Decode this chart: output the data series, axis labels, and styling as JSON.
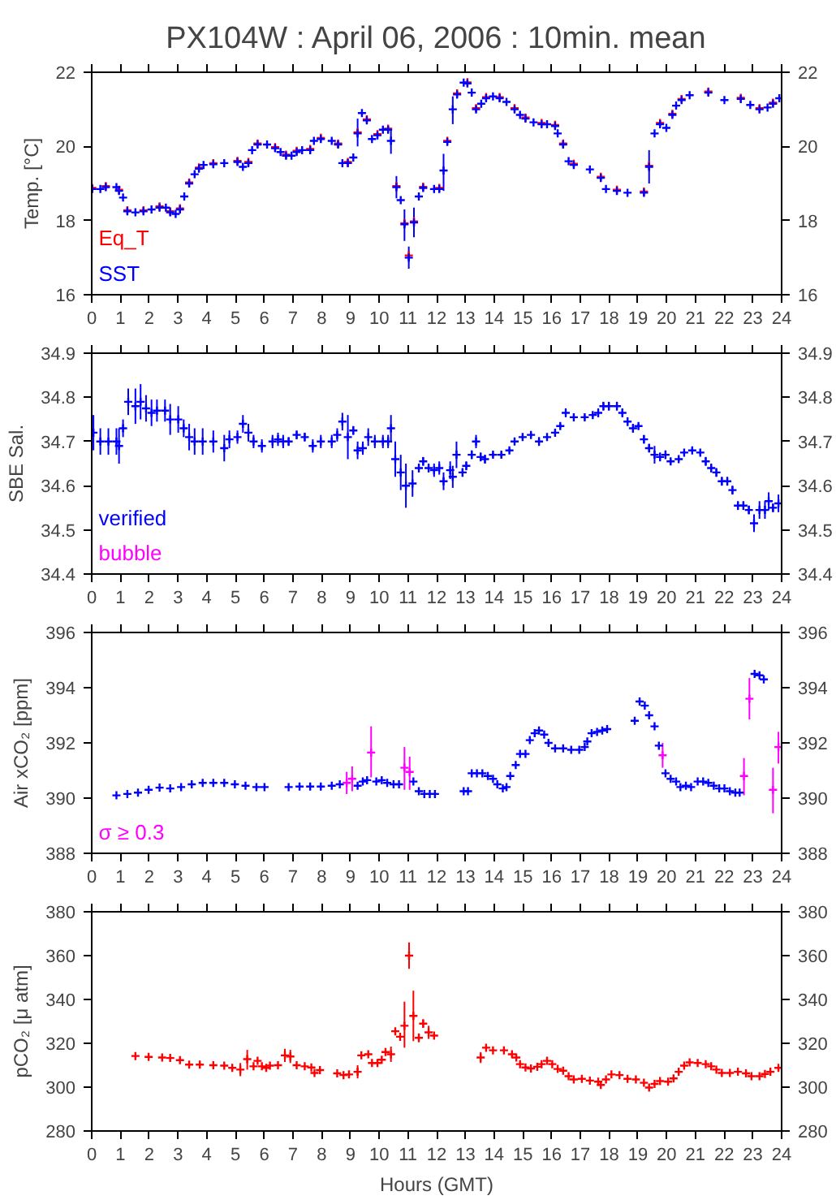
{
  "chart_data": [
    {
      "type": "scatter",
      "title": "PX104W : April 06, 2006 : 10min. mean",
      "ylabel": "Temp. [°C]",
      "xlim": [
        0,
        24
      ],
      "xticks": [
        0,
        1,
        2,
        3,
        4,
        5,
        6,
        7,
        8,
        9,
        10,
        11,
        12,
        13,
        14,
        15,
        16,
        17,
        18,
        19,
        20,
        21,
        22,
        23,
        24
      ],
      "ylim": [
        16,
        22
      ],
      "yticks": [
        16,
        18,
        20,
        22
      ],
      "y2lim": [
        16,
        22
      ],
      "y2ticks": [
        16,
        18,
        20,
        22
      ],
      "grid": false,
      "legend": "bottom left",
      "marker": "cross",
      "series": [
        {
          "name": "Eq_T",
          "color": "#ff0000",
          "x": [
            0.02,
            0.49,
            0.95,
            1.24,
            1.8,
            2.36,
            2.73,
            3.07,
            3.39,
            3.73,
            4.23,
            5.07,
            5.45,
            5.77,
            6.38,
            6.76,
            7.13,
            7.6,
            7.97,
            8.57,
            8.91,
            9.25,
            9.57,
            9.94,
            10.31,
            10.6,
            10.88,
            11.03,
            11.21,
            11.53,
            12.09,
            12.37,
            12.71,
            13.07,
            13.37,
            13.72,
            14.19,
            14.71,
            15.09,
            15.65,
            16.12,
            16.4,
            16.77,
            17.71,
            18.27,
            19.21,
            19.39,
            19.77,
            20.2,
            20.52,
            21.45,
            22.58,
            23.23,
            23.7
          ],
          "values": [
            18.88,
            18.93,
            18.83,
            18.28,
            18.28,
            18.38,
            18.25,
            18.33,
            19.03,
            19.43,
            19.55,
            19.61,
            19.58,
            20.08,
            19.98,
            19.78,
            19.88,
            19.93,
            20.23,
            20.08,
            19.58,
            20.38,
            20.73,
            20.33,
            20.48,
            18.93,
            17.93,
            17.06,
            17.98,
            18.91,
            18.88,
            20.15,
            21.43,
            21.73,
            21.03,
            21.33,
            21.33,
            21.03,
            20.78,
            20.63,
            20.58,
            20.08,
            19.53,
            19.18,
            18.83,
            18.78,
            19.48,
            20.63,
            20.88,
            21.28,
            21.48,
            21.31,
            21.03,
            21.18
          ]
        },
        {
          "name": "SST",
          "color": "#0000ff",
          "x": [
            0.02,
            0.3,
            0.49,
            0.86,
            0.95,
            1.09,
            1.24,
            1.52,
            1.8,
            2.08,
            2.36,
            2.58,
            2.73,
            2.92,
            3.07,
            3.22,
            3.39,
            3.58,
            3.73,
            3.89,
            4.23,
            4.61,
            5.07,
            5.26,
            5.45,
            5.58,
            5.77,
            6.1,
            6.38,
            6.57,
            6.76,
            6.95,
            7.13,
            7.32,
            7.6,
            7.73,
            7.97,
            8.35,
            8.57,
            8.72,
            8.91,
            9.1,
            9.25,
            9.4,
            9.57,
            9.75,
            9.94,
            10.13,
            10.31,
            10.41,
            10.6,
            10.75,
            10.88,
            11.03,
            11.21,
            11.38,
            11.53,
            11.91,
            12.09,
            12.24,
            12.37,
            12.56,
            12.71,
            12.94,
            13.07,
            13.22,
            13.37,
            13.55,
            13.72,
            13.96,
            14.19,
            14.43,
            14.71,
            14.9,
            15.09,
            15.37,
            15.65,
            15.84,
            16.12,
            16.21,
            16.4,
            16.59,
            16.77,
            17.33,
            17.71,
            17.89,
            18.27,
            18.64,
            19.21,
            19.39,
            19.58,
            19.77,
            19.99,
            20.2,
            20.33,
            20.52,
            20.8,
            21.45,
            22.01,
            22.58,
            22.91,
            23.23,
            23.51,
            23.7,
            23.92
          ],
          "values": [
            18.85,
            18.85,
            18.9,
            18.9,
            18.8,
            18.62,
            18.25,
            18.22,
            18.25,
            18.3,
            18.35,
            18.35,
            18.22,
            18.18,
            18.3,
            18.65,
            19.0,
            19.25,
            19.4,
            19.5,
            19.52,
            19.55,
            19.58,
            19.45,
            19.55,
            19.9,
            20.05,
            20.05,
            19.95,
            19.85,
            19.75,
            19.75,
            19.85,
            19.9,
            19.9,
            20.15,
            20.2,
            20.15,
            20.05,
            19.55,
            19.55,
            19.7,
            20.35,
            20.9,
            20.7,
            20.2,
            20.3,
            20.45,
            20.45,
            20.15,
            18.9,
            18.55,
            17.9,
            17.0,
            17.95,
            18.65,
            18.88,
            18.85,
            18.85,
            19.35,
            20.12,
            21.0,
            21.4,
            21.72,
            21.7,
            21.45,
            21.0,
            21.15,
            21.3,
            21.35,
            21.3,
            21.2,
            21.0,
            20.85,
            20.75,
            20.65,
            20.6,
            20.6,
            20.55,
            20.35,
            20.05,
            19.6,
            19.5,
            19.38,
            19.15,
            18.85,
            18.8,
            18.75,
            18.75,
            19.45,
            20.35,
            20.6,
            20.5,
            20.85,
            21.1,
            21.25,
            21.38,
            21.45,
            21.25,
            21.28,
            21.12,
            21.0,
            21.05,
            21.15,
            21.3
          ],
          "errors": [
            null,
            null,
            null,
            null,
            null,
            null,
            null,
            null,
            null,
            null,
            null,
            null,
            null,
            null,
            null,
            null,
            null,
            null,
            null,
            null,
            null,
            null,
            null,
            null,
            null,
            null,
            null,
            null,
            null,
            null,
            null,
            null,
            null,
            null,
            null,
            null,
            null,
            null,
            null,
            null,
            null,
            null,
            [
              20.0,
              20.75
            ],
            null,
            null,
            null,
            null,
            null,
            null,
            [
              19.8,
              20.45
            ],
            0.3,
            null,
            [
              17.45,
              18.3
            ],
            0.3,
            [
              17.55,
              18.35
            ],
            null,
            null,
            null,
            null,
            [
              18.8,
              19.8
            ],
            null,
            [
              20.6,
              21.35
            ],
            null,
            null,
            null,
            null,
            null,
            null,
            null,
            null,
            null,
            null,
            null,
            null,
            null,
            null,
            null,
            null,
            null,
            null,
            null,
            null,
            null,
            null,
            null,
            null,
            null,
            null,
            null,
            [
              19.0,
              19.9
            ],
            null,
            null,
            null,
            null,
            null,
            null,
            null,
            null,
            null,
            null,
            null,
            null,
            null,
            null,
            null
          ]
        }
      ]
    },
    {
      "type": "scatter",
      "ylabel": "SBE Sal.",
      "xlim": [
        0,
        24
      ],
      "xticks": [
        0,
        1,
        2,
        3,
        4,
        5,
        6,
        7,
        8,
        9,
        10,
        11,
        12,
        13,
        14,
        15,
        16,
        17,
        18,
        19,
        20,
        21,
        22,
        23,
        24
      ],
      "ylim": [
        34.4,
        34.9
      ],
      "yticks": [
        34.4,
        34.5,
        34.6,
        34.7,
        34.8,
        34.9
      ],
      "y2lim": [
        34.4,
        34.9
      ],
      "y2ticks": [
        34.4,
        34.5,
        34.6,
        34.7,
        34.8,
        34.9
      ],
      "grid": false,
      "legend": "bottom left",
      "marker": "cross",
      "series": [
        {
          "name": "verified",
          "color": "#0000ff",
          "x": [
            0.06,
            0.3,
            0.58,
            0.86,
            0.95,
            1.09,
            1.27,
            1.52,
            1.7,
            1.89,
            2.08,
            2.27,
            2.55,
            2.73,
            3.01,
            3.2,
            3.39,
            3.58,
            3.86,
            4.23,
            4.61,
            4.79,
            5.07,
            5.26,
            5.45,
            5.63,
            5.92,
            6.29,
            6.48,
            6.66,
            6.85,
            7.13,
            7.41,
            7.69,
            7.97,
            8.35,
            8.54,
            8.72,
            8.91,
            9.1,
            9.25,
            9.43,
            9.62,
            9.85,
            10.13,
            10.31,
            10.41,
            10.56,
            10.75,
            10.93,
            11.16,
            11.38,
            11.53,
            11.72,
            11.91,
            12.09,
            12.24,
            12.47,
            12.56,
            12.69,
            12.9,
            13.03,
            13.22,
            13.37,
            13.53,
            13.68,
            13.96,
            14.25,
            14.53,
            14.71,
            14.99,
            15.28,
            15.56,
            15.84,
            16.12,
            16.3,
            16.49,
            16.77,
            17.15,
            17.43,
            17.62,
            17.8,
            17.99,
            18.27,
            18.46,
            18.64,
            18.83,
            19.02,
            19.21,
            19.39,
            19.58,
            19.77,
            19.96,
            20.14,
            20.42,
            20.61,
            20.89,
            21.17,
            21.36,
            21.55,
            21.73,
            21.92,
            22.11,
            22.29,
            22.48,
            22.67,
            22.86,
            23.04,
            23.23,
            23.42,
            23.55,
            23.7,
            23.89
          ],
          "values": [
            34.72,
            34.7,
            34.7,
            34.7,
            34.69,
            34.73,
            34.79,
            34.78,
            34.79,
            34.775,
            34.765,
            34.77,
            34.77,
            34.75,
            34.75,
            34.73,
            34.71,
            34.7,
            34.7,
            34.7,
            34.685,
            34.705,
            34.71,
            34.74,
            34.72,
            34.7,
            34.69,
            34.7,
            34.705,
            34.7,
            34.7,
            34.715,
            34.71,
            34.69,
            34.7,
            34.7,
            34.715,
            34.745,
            34.71,
            34.725,
            34.68,
            34.685,
            34.71,
            34.7,
            34.7,
            34.7,
            34.73,
            34.66,
            34.63,
            34.6,
            34.605,
            34.64,
            34.655,
            34.64,
            34.635,
            34.64,
            34.61,
            34.635,
            34.62,
            34.67,
            34.63,
            34.645,
            34.67,
            34.7,
            34.665,
            34.66,
            34.67,
            34.67,
            34.68,
            34.7,
            34.71,
            34.715,
            34.7,
            34.71,
            34.72,
            34.735,
            34.765,
            34.755,
            34.755,
            34.76,
            34.765,
            34.78,
            34.78,
            34.78,
            34.765,
            34.745,
            34.73,
            34.735,
            34.705,
            34.685,
            34.67,
            34.665,
            34.67,
            34.655,
            34.66,
            34.675,
            34.68,
            34.675,
            34.655,
            34.64,
            34.63,
            34.61,
            34.61,
            34.59,
            34.555,
            34.555,
            34.545,
            34.515,
            34.545,
            34.545,
            34.565,
            34.55,
            34.56
          ],
          "errors": [
            0.04,
            0.03,
            0.03,
            0.03,
            0.04,
            0.02,
            0.03,
            0.04,
            0.04,
            0.03,
            0.03,
            0.025,
            0.025,
            0.035,
            0.03,
            0.02,
            0.03,
            0.03,
            0.03,
            0.025,
            0.03,
            0.02,
            0.015,
            0.02,
            0.02,
            0.015,
            0.015,
            0.015,
            0.015,
            0.015,
            0.01,
            0.01,
            0.01,
            0.015,
            0.015,
            0.015,
            0.015,
            0.02,
            0.05,
            0.01,
            0.02,
            0.015,
            0.02,
            0.015,
            0.015,
            0.015,
            0.03,
            0.04,
            0.04,
            0.05,
            0.03,
            0.01,
            0.01,
            0.01,
            0.015,
            0.015,
            0.02,
            0.02,
            0.025,
            0.03,
            0.01,
            0.01,
            0.01,
            0.015,
            0.01,
            0.01,
            0.005,
            0.005,
            0.005,
            0.005,
            0.005,
            0.005,
            0.01,
            0.005,
            0.005,
            0.005,
            0.01,
            0.005,
            0.005,
            0.005,
            0.01,
            0.01,
            0.01,
            0.01,
            0.01,
            0.01,
            0.01,
            0.005,
            0.01,
            0.01,
            0.02,
            0.01,
            0.01,
            0.005,
            0.005,
            0.005,
            0.005,
            0.005,
            0.01,
            0.01,
            0.01,
            0.01,
            0.01,
            0.01,
            0.01,
            0.01,
            0.01,
            0.02,
            0.02,
            0.02,
            0.02,
            0.01,
            0.02
          ]
        },
        {
          "name": "bubble",
          "color": "#ff00ff"
        }
      ]
    },
    {
      "type": "scatter",
      "ylabel": "Air xCO₂ [ppm]",
      "xlim": [
        0,
        24
      ],
      "xticks": [
        0,
        1,
        2,
        3,
        4,
        5,
        6,
        7,
        8,
        9,
        10,
        11,
        12,
        13,
        14,
        15,
        16,
        17,
        18,
        19,
        20,
        21,
        22,
        23,
        24
      ],
      "ylim": [
        388,
        396
      ],
      "yticks": [
        388,
        390,
        392,
        394,
        396
      ],
      "y2lim": [
        388,
        396
      ],
      "y2ticks": [
        388,
        390,
        392,
        394,
        396
      ],
      "grid": false,
      "legend": "bottom left",
      "marker": "cross",
      "series": [
        {
          "color": "#0000ff",
          "x": [
            0.86,
            1.24,
            1.61,
            1.98,
            2.36,
            2.73,
            3.11,
            3.48,
            3.86,
            4.23,
            4.61,
            4.98,
            5.35,
            5.73,
            6.01,
            6.85,
            7.23,
            7.6,
            7.97,
            8.35,
            8.63,
            9.25,
            9.43,
            9.58,
            9.9,
            10.09,
            10.28,
            10.5,
            10.69,
            11.19,
            11.38,
            11.57,
            11.76,
            11.94,
            12.94,
            13.09,
            13.22,
            13.4,
            13.59,
            13.78,
            13.96,
            14.11,
            14.3,
            14.43,
            14.56,
            14.75,
            14.9,
            15.09,
            15.24,
            15.41,
            15.56,
            15.74,
            15.89,
            16.12,
            16.4,
            16.68,
            16.96,
            17.15,
            17.24,
            17.39,
            17.58,
            17.76,
            17.93,
            18.89,
            19.06,
            19.24,
            19.39,
            19.58,
            19.73,
            19.96,
            20.14,
            20.33,
            20.48,
            20.67,
            20.85,
            21.08,
            21.27,
            21.45,
            21.64,
            21.83,
            22.01,
            22.2,
            22.39,
            22.54,
            23.06,
            23.23,
            23.38
          ],
          "values": [
            390.1,
            390.15,
            390.2,
            390.3,
            390.38,
            390.35,
            390.4,
            390.5,
            390.55,
            390.55,
            390.55,
            390.5,
            390.45,
            390.4,
            390.4,
            390.4,
            390.42,
            390.42,
            390.42,
            390.45,
            390.5,
            390.45,
            390.6,
            390.65,
            390.6,
            390.65,
            390.55,
            390.5,
            390.5,
            390.6,
            390.25,
            390.15,
            390.15,
            390.15,
            390.25,
            390.25,
            390.9,
            390.9,
            390.9,
            390.8,
            390.7,
            390.5,
            390.35,
            390.4,
            390.8,
            391.2,
            391.6,
            391.6,
            392.1,
            392.35,
            392.45,
            392.3,
            392.0,
            391.8,
            391.8,
            391.75,
            391.75,
            391.85,
            392.05,
            392.35,
            392.4,
            392.45,
            392.5,
            392.8,
            393.5,
            393.35,
            393.0,
            392.6,
            391.9,
            390.9,
            390.7,
            390.6,
            390.4,
            390.45,
            390.4,
            390.6,
            390.6,
            390.55,
            390.45,
            390.35,
            390.35,
            390.25,
            390.2,
            390.2,
            394.5,
            394.45,
            394.3
          ]
        },
        {
          "name": "σ ≥ 0.3",
          "color": "#ff00ff",
          "x": [
            8.87,
            9.06,
            9.72,
            10.88,
            11.06,
            19.86,
            22.69,
            22.88,
            23.7,
            23.89
          ],
          "values": [
            390.55,
            390.7,
            391.65,
            391.1,
            390.95,
            391.55,
            390.8,
            393.6,
            390.3,
            391.85
          ],
          "errors": [
            [
              390.15,
              390.95
            ],
            [
              390.25,
              391.15
            ],
            [
              390.75,
              392.6
            ],
            [
              390.3,
              391.85
            ],
            [
              390.3,
              391.5
            ],
            [
              391.1,
              392.0
            ],
            [
              390.1,
              391.45
            ],
            [
              392.85,
              394.35
            ],
            [
              389.45,
              391.1
            ],
            [
              391.25,
              392.4
            ]
          ]
        }
      ]
    },
    {
      "type": "scatter",
      "ylabel": "pCO₂ [μ atm]",
      "xlabel": "Hours (GMT)",
      "xlim": [
        0,
        24
      ],
      "xticks": [
        0,
        1,
        2,
        3,
        4,
        5,
        6,
        7,
        8,
        9,
        10,
        11,
        12,
        13,
        14,
        15,
        16,
        17,
        18,
        19,
        20,
        21,
        22,
        23,
        24
      ],
      "ylim": [
        280,
        380
      ],
      "yticks": [
        280,
        300,
        320,
        340,
        360,
        380
      ],
      "y2lim": [
        280,
        380
      ],
      "y2ticks": [
        280,
        300,
        320,
        340,
        360,
        380
      ],
      "grid": false,
      "marker": "cross",
      "series": [
        {
          "color": "#ff0000",
          "x": [
            1.52,
            1.98,
            2.45,
            2.73,
            3.07,
            3.39,
            3.76,
            4.23,
            4.61,
            4.89,
            5.17,
            5.41,
            5.63,
            5.77,
            5.92,
            6.07,
            6.2,
            6.48,
            6.72,
            6.91,
            7.13,
            7.41,
            7.64,
            7.75,
            7.94,
            8.54,
            8.76,
            8.95,
            9.25,
            9.38,
            9.62,
            9.75,
            9.94,
            10.09,
            10.22,
            10.41,
            10.56,
            10.73,
            10.88,
            11.04,
            11.19,
            11.38,
            11.53,
            11.72,
            11.91,
            13.53,
            13.72,
            13.96,
            14.34,
            14.62,
            14.77,
            14.9,
            15.09,
            15.28,
            15.5,
            15.65,
            15.84,
            16.02,
            16.21,
            16.4,
            16.59,
            16.77,
            17.05,
            17.33,
            17.62,
            17.71,
            17.89,
            18.08,
            18.36,
            18.64,
            18.93,
            19.21,
            19.39,
            19.58,
            19.77,
            20.05,
            20.24,
            20.42,
            20.61,
            20.8,
            21.08,
            21.36,
            21.55,
            21.73,
            21.92,
            22.2,
            22.48,
            22.76,
            22.95,
            23.23,
            23.42,
            23.61,
            23.89
          ],
          "values": [
            314.2,
            313.8,
            313.5,
            313.3,
            312.3,
            310.3,
            310.3,
            310.0,
            309.8,
            308.8,
            308.0,
            312.8,
            309.5,
            312.0,
            309.5,
            308.8,
            309.8,
            310.0,
            314.5,
            314.0,
            310.0,
            309.5,
            309.0,
            306.5,
            307.8,
            306.3,
            305.5,
            305.8,
            307.0,
            314.5,
            315.0,
            311.0,
            311.0,
            312.5,
            316.0,
            315.0,
            325.5,
            323.0,
            328.0,
            360.0,
            332.5,
            322.5,
            329.0,
            325.0,
            323.5,
            313.5,
            318.0,
            316.8,
            316.8,
            315.0,
            313.5,
            310.5,
            309.0,
            308.5,
            309.3,
            310.5,
            312.0,
            310.5,
            308.3,
            307.5,
            305.0,
            303.5,
            303.8,
            303.0,
            302.5,
            301.0,
            303.5,
            305.8,
            305.5,
            303.8,
            303.5,
            302.0,
            299.8,
            301.5,
            302.8,
            302.5,
            304.0,
            307.0,
            309.8,
            311.3,
            311.0,
            310.5,
            309.5,
            308.0,
            306.5,
            306.5,
            307.0,
            306.3,
            305.0,
            305.0,
            306.0,
            307.0,
            308.8
          ],
          "errors": [
            null,
            null,
            null,
            null,
            null,
            null,
            null,
            null,
            null,
            null,
            3,
            [
              308,
              317
            ],
            null,
            null,
            null,
            null,
            null,
            null,
            3,
            3,
            null,
            null,
            null,
            null,
            null,
            null,
            null,
            null,
            3,
            null,
            null,
            null,
            null,
            null,
            null,
            3.5,
            null,
            null,
            [
              318,
              339
            ],
            6,
            [
              321,
              344
            ],
            2,
            2,
            3,
            null,
            2.5,
            null,
            null,
            null,
            null,
            null,
            null,
            null,
            null,
            null,
            null,
            null,
            null,
            null,
            null,
            null,
            null,
            null,
            null,
            null,
            null,
            null,
            null,
            null,
            null,
            null,
            null,
            null,
            null,
            null,
            null,
            null,
            null,
            null,
            null,
            null,
            null,
            null,
            null,
            null,
            null,
            null,
            null,
            null,
            null,
            null,
            null,
            null
          ]
        }
      ]
    }
  ]
}
